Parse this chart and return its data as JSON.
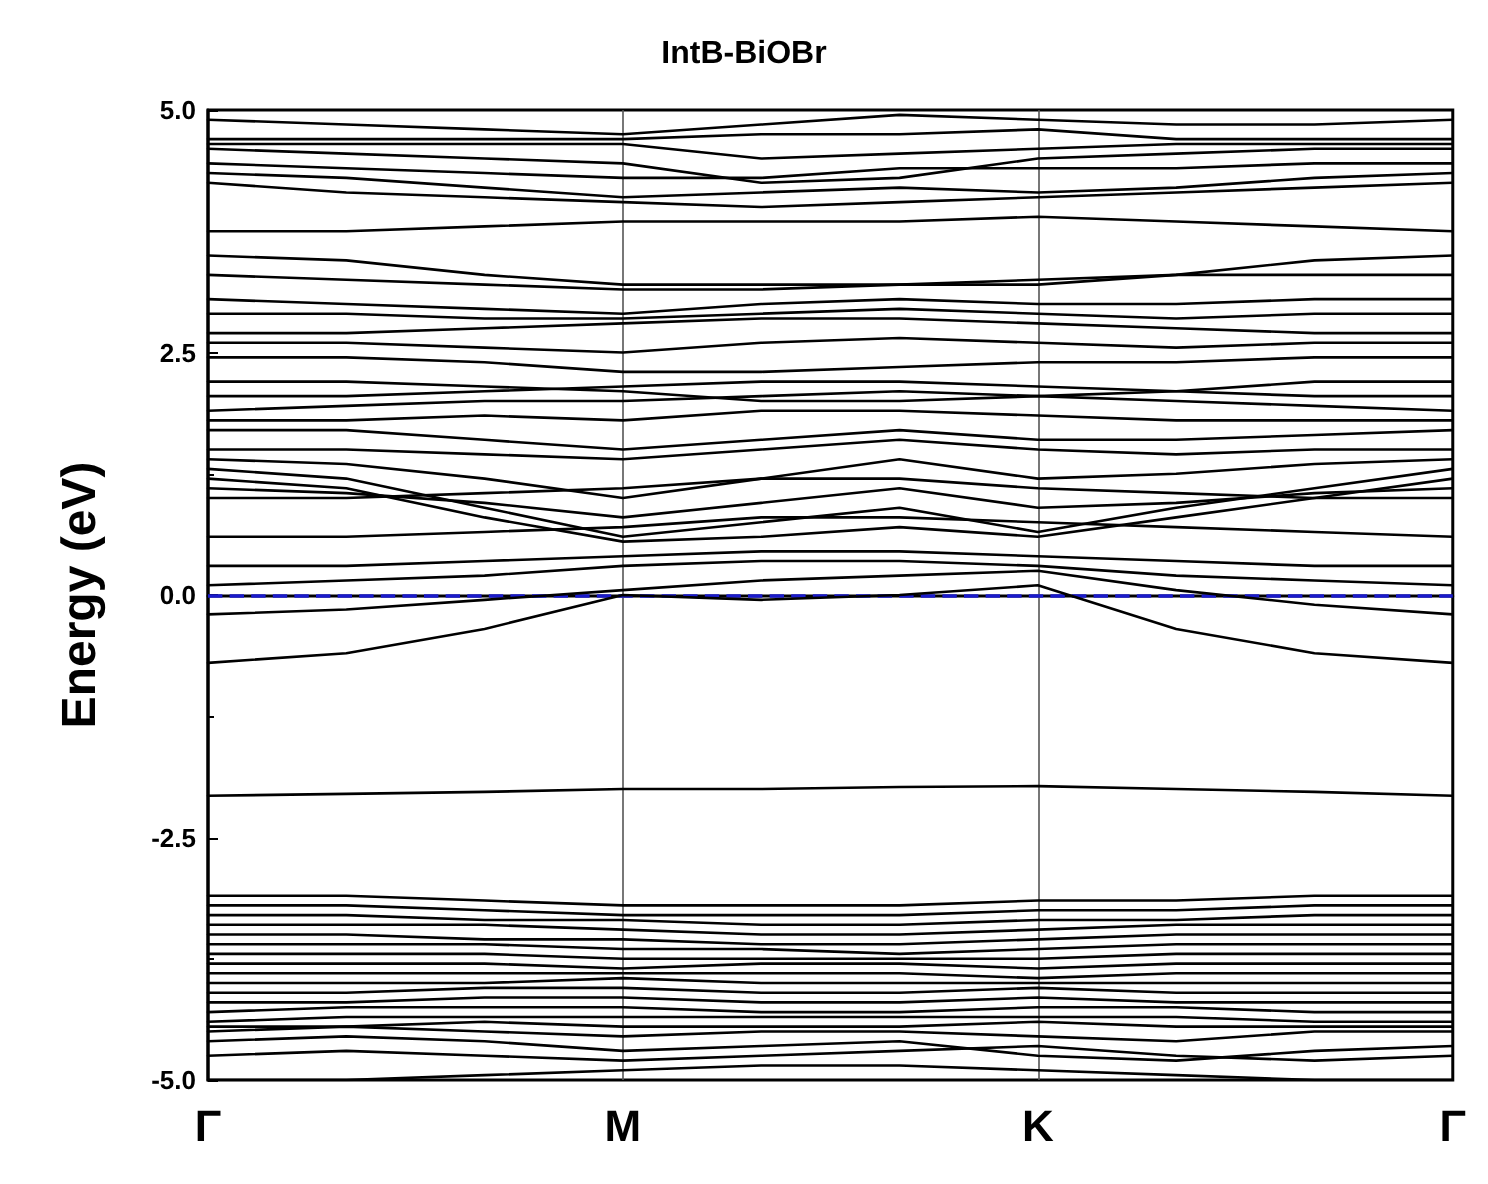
{
  "chart_data": {
    "type": "line",
    "title": "IntB-BiOBr",
    "ylabel": "Energy (eV)",
    "categories": [
      "Γ",
      null,
      null,
      "M",
      null,
      null,
      "K",
      null,
      null,
      "Γ"
    ],
    "ylim": [
      -5,
      5
    ],
    "yticks": [
      {
        "value": -5,
        "label": "-5.0"
      },
      {
        "value": -2.5,
        "label": "-2.5"
      },
      {
        "value": 0,
        "label": "0.0"
      },
      {
        "value": 2.5,
        "label": "2.5"
      },
      {
        "value": 5,
        "label": "5.0"
      }
    ],
    "grid": false,
    "marker": "none",
    "line_style": "solid",
    "ref_lines": [
      {
        "axis": "x",
        "value": "M",
        "color": "#555555",
        "line_style": "solid"
      },
      {
        "axis": "x",
        "value": "K",
        "color": "#555555",
        "line_style": "solid"
      },
      {
        "axis": "y",
        "value": 0,
        "color": "#1a1acc",
        "line_style": "dashed"
      }
    ],
    "series": [
      {
        "color": "#000000",
        "values": [
          -0.7,
          -0.6,
          -0.35,
          0.0,
          -0.05,
          0.0,
          0.1,
          -0.35,
          -0.6,
          -0.7
        ]
      },
      {
        "color": "#000000",
        "values": [
          -0.2,
          -0.15,
          -0.05,
          0.05,
          0.15,
          0.2,
          0.25,
          0.05,
          -0.1,
          -0.2
        ]
      },
      {
        "color": "#000000",
        "values": [
          0.1,
          0.15,
          0.2,
          0.3,
          0.35,
          0.35,
          0.3,
          0.2,
          0.15,
          0.1
        ]
      },
      {
        "color": "#000000",
        "values": [
          0.3,
          0.3,
          0.35,
          0.4,
          0.45,
          0.45,
          0.4,
          0.35,
          0.3,
          0.3
        ]
      },
      {
        "color": "#000000",
        "values": [
          0.6,
          0.6,
          0.65,
          0.7,
          0.8,
          0.8,
          0.75,
          0.7,
          0.65,
          0.6
        ]
      },
      {
        "color": "#000000",
        "values": [
          1.2,
          1.1,
          0.8,
          0.55,
          0.6,
          0.7,
          0.6,
          0.8,
          1.0,
          1.2
        ]
      },
      {
        "color": "#000000",
        "values": [
          1.3,
          1.2,
          0.9,
          0.6,
          0.75,
          0.9,
          0.65,
          0.9,
          1.1,
          1.3
        ]
      },
      {
        "color": "#000000",
        "values": [
          1.0,
          1.0,
          1.05,
          1.1,
          1.2,
          1.2,
          1.1,
          1.05,
          1.0,
          1.0
        ]
      },
      {
        "color": "#000000",
        "values": [
          1.1,
          1.05,
          0.95,
          0.8,
          0.95,
          1.1,
          0.9,
          0.95,
          1.05,
          1.1
        ]
      },
      {
        "color": "#000000",
        "values": [
          1.4,
          1.35,
          1.2,
          1.0,
          1.2,
          1.4,
          1.2,
          1.25,
          1.35,
          1.4
        ]
      },
      {
        "color": "#000000",
        "values": [
          1.5,
          1.5,
          1.45,
          1.4,
          1.5,
          1.6,
          1.5,
          1.45,
          1.5,
          1.5
        ]
      },
      {
        "color": "#000000",
        "values": [
          1.7,
          1.7,
          1.6,
          1.5,
          1.6,
          1.7,
          1.6,
          1.6,
          1.65,
          1.7
        ]
      },
      {
        "color": "#000000",
        "values": [
          1.8,
          1.8,
          1.85,
          1.8,
          1.9,
          1.9,
          1.85,
          1.8,
          1.8,
          1.8
        ]
      },
      {
        "color": "#000000",
        "values": [
          1.9,
          1.95,
          2.0,
          2.0,
          2.05,
          2.1,
          2.05,
          2.0,
          1.95,
          1.9
        ]
      },
      {
        "color": "#000000",
        "values": [
          2.05,
          2.05,
          2.1,
          2.15,
          2.2,
          2.2,
          2.15,
          2.1,
          2.05,
          2.05
        ]
      },
      {
        "color": "#000000",
        "values": [
          2.2,
          2.2,
          2.15,
          2.1,
          2.0,
          2.0,
          2.05,
          2.1,
          2.2,
          2.2
        ]
      },
      {
        "color": "#000000",
        "values": [
          2.45,
          2.45,
          2.4,
          2.3,
          2.3,
          2.35,
          2.4,
          2.4,
          2.45,
          2.45
        ]
      },
      {
        "color": "#000000",
        "values": [
          2.6,
          2.6,
          2.55,
          2.5,
          2.6,
          2.65,
          2.6,
          2.55,
          2.6,
          2.6
        ]
      },
      {
        "color": "#000000",
        "values": [
          2.7,
          2.7,
          2.75,
          2.8,
          2.85,
          2.85,
          2.8,
          2.75,
          2.7,
          2.7
        ]
      },
      {
        "color": "#000000",
        "values": [
          2.9,
          2.9,
          2.85,
          2.85,
          2.9,
          2.95,
          2.9,
          2.85,
          2.9,
          2.9
        ]
      },
      {
        "color": "#000000",
        "values": [
          3.05,
          3.0,
          2.95,
          2.9,
          3.0,
          3.05,
          3.0,
          3.0,
          3.05,
          3.05
        ]
      },
      {
        "color": "#000000",
        "values": [
          3.3,
          3.25,
          3.2,
          3.15,
          3.15,
          3.2,
          3.25,
          3.3,
          3.3,
          3.3
        ]
      },
      {
        "color": "#000000",
        "values": [
          3.5,
          3.45,
          3.3,
          3.2,
          3.2,
          3.2,
          3.2,
          3.3,
          3.45,
          3.5
        ]
      },
      {
        "color": "#000000",
        "values": [
          3.75,
          3.75,
          3.8,
          3.85,
          3.85,
          3.85,
          3.9,
          3.85,
          3.8,
          3.75
        ]
      },
      {
        "color": "#000000",
        "values": [
          4.25,
          4.15,
          4.1,
          4.05,
          4.0,
          4.05,
          4.1,
          4.15,
          4.2,
          4.25
        ]
      },
      {
        "color": "#000000",
        "values": [
          4.35,
          4.3,
          4.2,
          4.1,
          4.15,
          4.2,
          4.15,
          4.2,
          4.3,
          4.35
        ]
      },
      {
        "color": "#000000",
        "values": [
          4.45,
          4.4,
          4.35,
          4.3,
          4.3,
          4.4,
          4.4,
          4.4,
          4.45,
          4.45
        ]
      },
      {
        "color": "#000000",
        "values": [
          4.6,
          4.55,
          4.5,
          4.45,
          4.25,
          4.3,
          4.5,
          4.55,
          4.6,
          4.6
        ]
      },
      {
        "color": "#000000",
        "values": [
          4.65,
          4.65,
          4.65,
          4.65,
          4.5,
          4.55,
          4.6,
          4.65,
          4.65,
          4.65
        ]
      },
      {
        "color": "#000000",
        "values": [
          4.7,
          4.7,
          4.7,
          4.7,
          4.75,
          4.75,
          4.8,
          4.7,
          4.7,
          4.7
        ]
      },
      {
        "color": "#000000",
        "values": [
          4.9,
          4.85,
          4.8,
          4.75,
          4.85,
          4.95,
          4.9,
          4.85,
          4.85,
          4.9
        ]
      },
      {
        "color": "#000000",
        "values": [
          -2.07,
          -2.05,
          -2.03,
          -2.0,
          -2.0,
          -1.98,
          -1.97,
          -2.0,
          -2.03,
          -2.07
        ]
      },
      {
        "color": "#000000",
        "values": [
          -3.1,
          -3.1,
          -3.15,
          -3.2,
          -3.2,
          -3.2,
          -3.15,
          -3.15,
          -3.1,
          -3.1
        ]
      },
      {
        "color": "#000000",
        "values": [
          -3.2,
          -3.2,
          -3.25,
          -3.3,
          -3.3,
          -3.3,
          -3.25,
          -3.25,
          -3.2,
          -3.2
        ]
      },
      {
        "color": "#000000",
        "values": [
          -3.3,
          -3.3,
          -3.35,
          -3.35,
          -3.4,
          -3.4,
          -3.35,
          -3.35,
          -3.3,
          -3.3
        ]
      },
      {
        "color": "#000000",
        "values": [
          -3.4,
          -3.4,
          -3.4,
          -3.45,
          -3.5,
          -3.5,
          -3.45,
          -3.4,
          -3.4,
          -3.4
        ]
      },
      {
        "color": "#000000",
        "values": [
          -3.5,
          -3.5,
          -3.55,
          -3.55,
          -3.6,
          -3.6,
          -3.55,
          -3.5,
          -3.5,
          -3.5
        ]
      },
      {
        "color": "#000000",
        "values": [
          -3.6,
          -3.6,
          -3.6,
          -3.65,
          -3.65,
          -3.7,
          -3.65,
          -3.6,
          -3.6,
          -3.6
        ]
      },
      {
        "color": "#000000",
        "values": [
          -3.7,
          -3.7,
          -3.7,
          -3.75,
          -3.75,
          -3.75,
          -3.75,
          -3.7,
          -3.7,
          -3.7
        ]
      },
      {
        "color": "#000000",
        "values": [
          -3.8,
          -3.8,
          -3.8,
          -3.85,
          -3.8,
          -3.8,
          -3.85,
          -3.8,
          -3.8,
          -3.8
        ]
      },
      {
        "color": "#000000",
        "values": [
          -3.9,
          -3.9,
          -3.9,
          -3.9,
          -3.9,
          -3.9,
          -3.95,
          -3.9,
          -3.9,
          -3.9
        ]
      },
      {
        "color": "#000000",
        "values": [
          -4.0,
          -4.0,
          -4.0,
          -3.95,
          -4.0,
          -4.0,
          -4.0,
          -4.0,
          -4.0,
          -4.0
        ]
      },
      {
        "color": "#000000",
        "values": [
          -4.1,
          -4.1,
          -4.05,
          -4.05,
          -4.1,
          -4.1,
          -4.05,
          -4.1,
          -4.1,
          -4.1
        ]
      },
      {
        "color": "#000000",
        "values": [
          -4.2,
          -4.2,
          -4.15,
          -4.15,
          -4.2,
          -4.2,
          -4.15,
          -4.2,
          -4.2,
          -4.2
        ]
      },
      {
        "color": "#000000",
        "values": [
          -4.3,
          -4.25,
          -4.25,
          -4.25,
          -4.3,
          -4.3,
          -4.25,
          -4.25,
          -4.3,
          -4.3
        ]
      },
      {
        "color": "#000000",
        "values": [
          -4.4,
          -4.35,
          -4.35,
          -4.35,
          -4.35,
          -4.35,
          -4.35,
          -4.35,
          -4.4,
          -4.4
        ]
      },
      {
        "color": "#000000",
        "values": [
          -4.45,
          -4.45,
          -4.4,
          -4.45,
          -4.45,
          -4.45,
          -4.4,
          -4.45,
          -4.45,
          -4.45
        ]
      },
      {
        "color": "#000000",
        "values": [
          -4.5,
          -4.45,
          -4.5,
          -4.55,
          -4.5,
          -4.5,
          -4.55,
          -4.6,
          -4.5,
          -4.5
        ]
      },
      {
        "color": "#000000",
        "values": [
          -4.6,
          -4.55,
          -4.6,
          -4.7,
          -4.65,
          -4.6,
          -4.75,
          -4.8,
          -4.7,
          -4.65
        ]
      },
      {
        "color": "#000000",
        "values": [
          -4.75,
          -4.7,
          -4.75,
          -4.8,
          -4.75,
          -4.7,
          -4.65,
          -4.75,
          -4.8,
          -4.75
        ]
      },
      {
        "color": "#000000",
        "values": [
          -5.0,
          -5.0,
          -4.95,
          -4.9,
          -4.85,
          -4.85,
          -4.9,
          -4.95,
          -5.0,
          -5.0
        ]
      }
    ]
  }
}
